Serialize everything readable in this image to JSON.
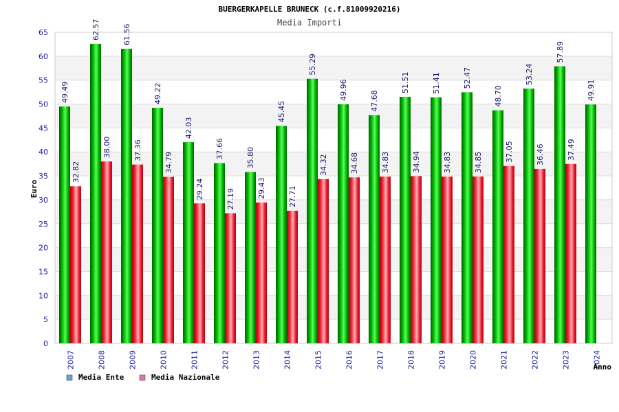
{
  "chart_data": {
    "type": "bar",
    "title": "BUERGERKAPELLE BRUNECK (c.f.81009920216)",
    "subtitle": "Media Importi",
    "ylabel": "Euro",
    "xlabel": "Anno",
    "ylim": [
      0,
      65
    ],
    "yticks": [
      0,
      5,
      10,
      15,
      20,
      25,
      30,
      35,
      40,
      45,
      50,
      55,
      60,
      65
    ],
    "grid": true,
    "legend_position": "bottom-left",
    "categories": [
      "2007",
      "2008",
      "2009",
      "2010",
      "2011",
      "2012",
      "2013",
      "2014",
      "2015",
      "2016",
      "2017",
      "2018",
      "2019",
      "2020",
      "2021",
      "2022",
      "2023",
      "2024"
    ],
    "series": [
      {
        "name": "Media Ente",
        "color": "#00aa00",
        "legend_color": "#5ba3e6",
        "values": [
          49.49,
          62.57,
          61.56,
          49.22,
          42.03,
          37.66,
          35.8,
          45.45,
          55.29,
          49.96,
          47.68,
          51.51,
          51.41,
          52.47,
          48.7,
          53.24,
          57.89,
          49.91
        ],
        "labels": [
          "49.49",
          "62.57",
          "61.56",
          "49.22",
          "42.03",
          "37.66",
          "35.80",
          "45.45",
          "55.29",
          "49.96",
          "47.68",
          "51.51",
          "51.41",
          "52.47",
          "48.70",
          "53.24",
          "57.89",
          "49.91"
        ]
      },
      {
        "name": "Media Nazionale",
        "color": "#e8202a",
        "legend_color": "#d87ca8",
        "values": [
          32.82,
          38.0,
          37.36,
          34.79,
          29.24,
          27.19,
          29.43,
          27.71,
          34.32,
          34.68,
          34.83,
          34.94,
          34.83,
          34.85,
          37.05,
          36.46,
          37.49,
          null
        ],
        "labels": [
          "32.82",
          "38.00",
          "37.36",
          "34.79",
          "29.24",
          "27.19",
          "29.43",
          "27.71",
          "34.32",
          "34.68",
          "34.83",
          "34.94",
          "34.83",
          "34.85",
          "37.05",
          "36.46",
          "37.49",
          ""
        ]
      }
    ],
    "colors": {
      "axis_text": "#1a1aa0",
      "grid_band": "#f3f3f3",
      "grid_line": "#dcdcdc"
    }
  }
}
